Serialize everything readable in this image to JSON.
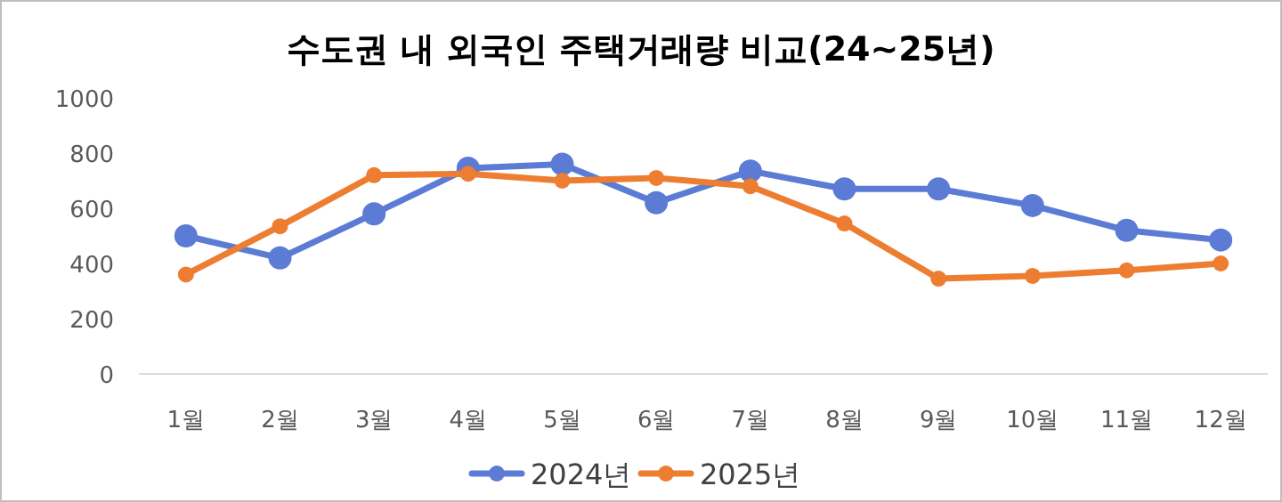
{
  "chart_data": {
    "type": "line",
    "title": "수도권 내 외국인 주택거래량 비교(24~25년)",
    "categories": [
      "1월",
      "2월",
      "3월",
      "4월",
      "5월",
      "6월",
      "7월",
      "8월",
      "9월",
      "10월",
      "11월",
      "12월"
    ],
    "series": [
      {
        "name": "2024년",
        "color": "#5b7bd5",
        "values": [
          500,
          420,
          580,
          745,
          760,
          620,
          735,
          670,
          670,
          610,
          520,
          485
        ]
      },
      {
        "name": "2025년",
        "color": "#ed7d31",
        "values": [
          360,
          535,
          720,
          725,
          700,
          710,
          680,
          545,
          345,
          355,
          375,
          400
        ]
      }
    ],
    "ylim": [
      0,
      1000
    ],
    "yticks": [
      0,
      200,
      400,
      600,
      800,
      1000
    ],
    "legend": "bottom",
    "marker": "circle"
  }
}
